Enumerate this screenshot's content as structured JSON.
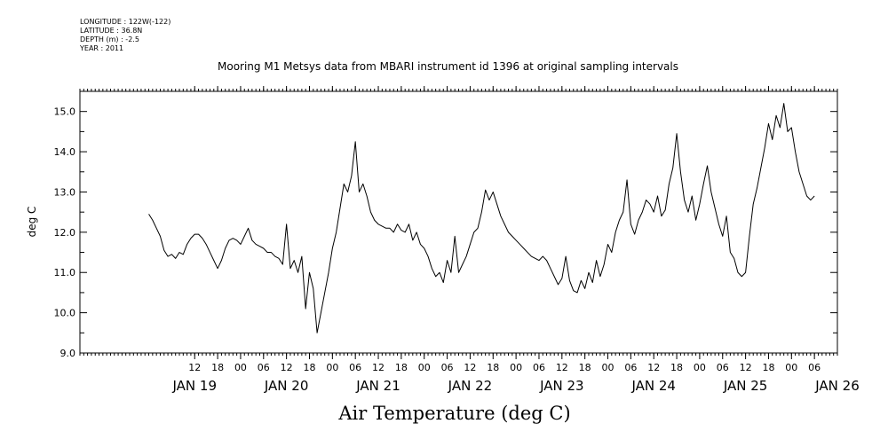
{
  "meta": {
    "longitude": "LONGITUDE : 122W(-122)",
    "latitude": "LATITUDE : 36.8N",
    "depth": "DEPTH (m) : -2.5",
    "year": "YEAR : 2011"
  },
  "chart_data": {
    "type": "line",
    "title": "Mooring M1 Metsys data from MBARI instrument id 1396 at original sampling intervals",
    "xlabel": "Air Temperature (deg C)",
    "ylabel": "deg C",
    "ylim": [
      9.0,
      15.5
    ],
    "y_ticks": [
      "9.0",
      "10.0",
      "11.0",
      "12.0",
      "13.0",
      "14.0",
      "15.0"
    ],
    "xlim": [
      "2011-01-18T06:00",
      "2011-01-26T12:00"
    ],
    "hour_ticks": [
      {
        "t": "2011-01-19T12:00",
        "label": "12"
      },
      {
        "t": "2011-01-19T18:00",
        "label": "18"
      },
      {
        "t": "2011-01-20T00:00",
        "label": "00"
      },
      {
        "t": "2011-01-20T06:00",
        "label": "06"
      },
      {
        "t": "2011-01-20T12:00",
        "label": "12"
      },
      {
        "t": "2011-01-20T18:00",
        "label": "18"
      },
      {
        "t": "2011-01-21T00:00",
        "label": "00"
      },
      {
        "t": "2011-01-21T06:00",
        "label": "06"
      },
      {
        "t": "2011-01-21T12:00",
        "label": "12"
      },
      {
        "t": "2011-01-21T18:00",
        "label": "18"
      },
      {
        "t": "2011-01-22T00:00",
        "label": "00"
      },
      {
        "t": "2011-01-22T06:00",
        "label": "06"
      },
      {
        "t": "2011-01-22T12:00",
        "label": "12"
      },
      {
        "t": "2011-01-22T18:00",
        "label": "18"
      },
      {
        "t": "2011-01-23T00:00",
        "label": "00"
      },
      {
        "t": "2011-01-23T06:00",
        "label": "06"
      },
      {
        "t": "2011-01-23T12:00",
        "label": "12"
      },
      {
        "t": "2011-01-23T18:00",
        "label": "18"
      },
      {
        "t": "2011-01-24T00:00",
        "label": "00"
      },
      {
        "t": "2011-01-24T06:00",
        "label": "06"
      },
      {
        "t": "2011-01-24T12:00",
        "label": "12"
      },
      {
        "t": "2011-01-24T18:00",
        "label": "18"
      },
      {
        "t": "2011-01-25T00:00",
        "label": "00"
      },
      {
        "t": "2011-01-25T06:00",
        "label": "06"
      },
      {
        "t": "2011-01-25T12:00",
        "label": "12"
      },
      {
        "t": "2011-01-25T18:00",
        "label": "18"
      },
      {
        "t": "2011-01-26T00:00",
        "label": "00"
      },
      {
        "t": "2011-01-26T06:00",
        "label": "06"
      }
    ],
    "day_labels": [
      {
        "t": "2011-01-19T12:00",
        "label": "JAN 19"
      },
      {
        "t": "2011-01-20T12:00",
        "label": "JAN 20"
      },
      {
        "t": "2011-01-21T12:00",
        "label": "JAN 21"
      },
      {
        "t": "2011-01-22T12:00",
        "label": "JAN 22"
      },
      {
        "t": "2011-01-23T12:00",
        "label": "JAN 23"
      },
      {
        "t": "2011-01-24T12:00",
        "label": "JAN 24"
      },
      {
        "t": "2011-01-25T12:00",
        "label": "JAN 25"
      },
      {
        "t": "2011-01-26T12:00",
        "label": "JAN 26"
      }
    ],
    "grid": false,
    "series": [
      {
        "color": "#000000",
        "points": [
          [
            "2011-01-19T00:00",
            12.45
          ],
          [
            "2011-01-19T01:00",
            12.3
          ],
          [
            "2011-01-19T02:00",
            12.1
          ],
          [
            "2011-01-19T03:00",
            11.9
          ],
          [
            "2011-01-19T04:00",
            11.55
          ],
          [
            "2011-01-19T05:00",
            11.4
          ],
          [
            "2011-01-19T06:00",
            11.45
          ],
          [
            "2011-01-19T07:00",
            11.35
          ],
          [
            "2011-01-19T08:00",
            11.5
          ],
          [
            "2011-01-19T09:00",
            11.45
          ],
          [
            "2011-01-19T10:00",
            11.7
          ],
          [
            "2011-01-19T11:00",
            11.85
          ],
          [
            "2011-01-19T12:00",
            11.95
          ],
          [
            "2011-01-19T13:00",
            11.95
          ],
          [
            "2011-01-19T14:00",
            11.85
          ],
          [
            "2011-01-19T15:00",
            11.7
          ],
          [
            "2011-01-19T16:00",
            11.5
          ],
          [
            "2011-01-19T17:00",
            11.3
          ],
          [
            "2011-01-19T18:00",
            11.1
          ],
          [
            "2011-01-19T19:00",
            11.3
          ],
          [
            "2011-01-19T20:00",
            11.6
          ],
          [
            "2011-01-19T21:00",
            11.8
          ],
          [
            "2011-01-19T22:00",
            11.85
          ],
          [
            "2011-01-19T23:00",
            11.8
          ],
          [
            "2011-01-20T00:00",
            11.7
          ],
          [
            "2011-01-20T01:00",
            11.9
          ],
          [
            "2011-01-20T02:00",
            12.1
          ],
          [
            "2011-01-20T03:00",
            11.8
          ],
          [
            "2011-01-20T04:00",
            11.7
          ],
          [
            "2011-01-20T05:00",
            11.65
          ],
          [
            "2011-01-20T06:00",
            11.6
          ],
          [
            "2011-01-20T07:00",
            11.5
          ],
          [
            "2011-01-20T08:00",
            11.5
          ],
          [
            "2011-01-20T09:00",
            11.4
          ],
          [
            "2011-01-20T10:00",
            11.35
          ],
          [
            "2011-01-20T11:00",
            11.2
          ],
          [
            "2011-01-20T12:00",
            12.2
          ],
          [
            "2011-01-20T13:00",
            11.1
          ],
          [
            "2011-01-20T14:00",
            11.3
          ],
          [
            "2011-01-20T15:00",
            11.0
          ],
          [
            "2011-01-20T16:00",
            11.4
          ],
          [
            "2011-01-20T17:00",
            10.1
          ],
          [
            "2011-01-20T18:00",
            11.0
          ],
          [
            "2011-01-20T19:00",
            10.6
          ],
          [
            "2011-01-20T20:00",
            9.5
          ],
          [
            "2011-01-20T21:00",
            10.0
          ],
          [
            "2011-01-20T22:00",
            10.5
          ],
          [
            "2011-01-20T23:00",
            11.0
          ],
          [
            "2011-01-21T00:00",
            11.6
          ],
          [
            "2011-01-21T01:00",
            12.0
          ],
          [
            "2011-01-21T02:00",
            12.6
          ],
          [
            "2011-01-21T03:00",
            13.2
          ],
          [
            "2011-01-21T04:00",
            13.0
          ],
          [
            "2011-01-21T05:00",
            13.4
          ],
          [
            "2011-01-21T06:00",
            14.25
          ],
          [
            "2011-01-21T07:00",
            13.0
          ],
          [
            "2011-01-21T08:00",
            13.2
          ],
          [
            "2011-01-21T09:00",
            12.9
          ],
          [
            "2011-01-21T10:00",
            12.5
          ],
          [
            "2011-01-21T11:00",
            12.3
          ],
          [
            "2011-01-21T12:00",
            12.2
          ],
          [
            "2011-01-21T13:00",
            12.15
          ],
          [
            "2011-01-21T14:00",
            12.1
          ],
          [
            "2011-01-21T15:00",
            12.1
          ],
          [
            "2011-01-21T16:00",
            12.0
          ],
          [
            "2011-01-21T17:00",
            12.2
          ],
          [
            "2011-01-21T18:00",
            12.05
          ],
          [
            "2011-01-21T19:00",
            12.0
          ],
          [
            "2011-01-21T20:00",
            12.2
          ],
          [
            "2011-01-21T21:00",
            11.8
          ],
          [
            "2011-01-21T22:00",
            12.0
          ],
          [
            "2011-01-21T23:00",
            11.7
          ],
          [
            "2011-01-22T00:00",
            11.6
          ],
          [
            "2011-01-22T01:00",
            11.4
          ],
          [
            "2011-01-22T02:00",
            11.1
          ],
          [
            "2011-01-22T03:00",
            10.9
          ],
          [
            "2011-01-22T04:00",
            11.0
          ],
          [
            "2011-01-22T05:00",
            10.75
          ],
          [
            "2011-01-22T06:00",
            11.3
          ],
          [
            "2011-01-22T07:00",
            11.0
          ],
          [
            "2011-01-22T08:00",
            11.9
          ],
          [
            "2011-01-22T09:00",
            11.0
          ],
          [
            "2011-01-22T10:00",
            11.2
          ],
          [
            "2011-01-22T11:00",
            11.4
          ],
          [
            "2011-01-22T12:00",
            11.7
          ],
          [
            "2011-01-22T13:00",
            12.0
          ],
          [
            "2011-01-22T14:00",
            12.1
          ],
          [
            "2011-01-22T15:00",
            12.5
          ],
          [
            "2011-01-22T16:00",
            13.05
          ],
          [
            "2011-01-22T17:00",
            12.8
          ],
          [
            "2011-01-22T18:00",
            13.0
          ],
          [
            "2011-01-22T19:00",
            12.7
          ],
          [
            "2011-01-22T20:00",
            12.4
          ],
          [
            "2011-01-22T21:00",
            12.2
          ],
          [
            "2011-01-22T22:00",
            12.0
          ],
          [
            "2011-01-22T23:00",
            11.9
          ],
          [
            "2011-01-23T00:00",
            11.8
          ],
          [
            "2011-01-23T01:00",
            11.7
          ],
          [
            "2011-01-23T02:00",
            11.6
          ],
          [
            "2011-01-23T03:00",
            11.5
          ],
          [
            "2011-01-23T04:00",
            11.4
          ],
          [
            "2011-01-23T05:00",
            11.35
          ],
          [
            "2011-01-23T06:00",
            11.3
          ],
          [
            "2011-01-23T07:00",
            11.4
          ],
          [
            "2011-01-23T08:00",
            11.3
          ],
          [
            "2011-01-23T09:00",
            11.1
          ],
          [
            "2011-01-23T10:00",
            10.9
          ],
          [
            "2011-01-23T11:00",
            10.7
          ],
          [
            "2011-01-23T12:00",
            10.85
          ],
          [
            "2011-01-23T13:00",
            11.4
          ],
          [
            "2011-01-23T14:00",
            10.8
          ],
          [
            "2011-01-23T15:00",
            10.55
          ],
          [
            "2011-01-23T16:00",
            10.5
          ],
          [
            "2011-01-23T17:00",
            10.8
          ],
          [
            "2011-01-23T18:00",
            10.6
          ],
          [
            "2011-01-23T19:00",
            11.0
          ],
          [
            "2011-01-23T20:00",
            10.75
          ],
          [
            "2011-01-23T21:00",
            11.3
          ],
          [
            "2011-01-23T22:00",
            10.9
          ],
          [
            "2011-01-23T23:00",
            11.2
          ],
          [
            "2011-01-24T00:00",
            11.7
          ],
          [
            "2011-01-24T01:00",
            11.5
          ],
          [
            "2011-01-24T02:00",
            12.0
          ],
          [
            "2011-01-24T03:00",
            12.3
          ],
          [
            "2011-01-24T04:00",
            12.5
          ],
          [
            "2011-01-24T05:00",
            13.3
          ],
          [
            "2011-01-24T06:00",
            12.2
          ],
          [
            "2011-01-24T07:00",
            11.95
          ],
          [
            "2011-01-24T08:00",
            12.3
          ],
          [
            "2011-01-24T09:00",
            12.5
          ],
          [
            "2011-01-24T10:00",
            12.8
          ],
          [
            "2011-01-24T11:00",
            12.7
          ],
          [
            "2011-01-24T12:00",
            12.5
          ],
          [
            "2011-01-24T13:00",
            12.9
          ],
          [
            "2011-01-24T14:00",
            12.4
          ],
          [
            "2011-01-24T15:00",
            12.55
          ],
          [
            "2011-01-24T16:00",
            13.2
          ],
          [
            "2011-01-24T17:00",
            13.6
          ],
          [
            "2011-01-24T18:00",
            14.45
          ],
          [
            "2011-01-24T19:00",
            13.5
          ],
          [
            "2011-01-24T20:00",
            12.8
          ],
          [
            "2011-01-24T21:00",
            12.5
          ],
          [
            "2011-01-24T22:00",
            12.9
          ],
          [
            "2011-01-24T23:00",
            12.3
          ],
          [
            "2011-01-25T00:00",
            12.7
          ],
          [
            "2011-01-25T01:00",
            13.2
          ],
          [
            "2011-01-25T02:00",
            13.65
          ],
          [
            "2011-01-25T03:00",
            13.0
          ],
          [
            "2011-01-25T04:00",
            12.6
          ],
          [
            "2011-01-25T05:00",
            12.2
          ],
          [
            "2011-01-25T06:00",
            11.9
          ],
          [
            "2011-01-25T07:00",
            12.4
          ],
          [
            "2011-01-25T08:00",
            11.5
          ],
          [
            "2011-01-25T09:00",
            11.35
          ],
          [
            "2011-01-25T10:00",
            11.0
          ],
          [
            "2011-01-25T11:00",
            10.9
          ],
          [
            "2011-01-25T12:00",
            11.0
          ],
          [
            "2011-01-25T13:00",
            11.9
          ],
          [
            "2011-01-25T14:00",
            12.7
          ],
          [
            "2011-01-25T15:00",
            13.1
          ],
          [
            "2011-01-25T16:00",
            13.6
          ],
          [
            "2011-01-25T17:00",
            14.1
          ],
          [
            "2011-01-25T18:00",
            14.7
          ],
          [
            "2011-01-25T19:00",
            14.3
          ],
          [
            "2011-01-25T20:00",
            14.9
          ],
          [
            "2011-01-25T21:00",
            14.6
          ],
          [
            "2011-01-25T22:00",
            15.2
          ],
          [
            "2011-01-25T23:00",
            14.5
          ],
          [
            "2011-01-26T00:00",
            14.6
          ],
          [
            "2011-01-26T01:00",
            14.0
          ],
          [
            "2011-01-26T02:00",
            13.5
          ],
          [
            "2011-01-26T03:00",
            13.2
          ],
          [
            "2011-01-26T04:00",
            12.9
          ],
          [
            "2011-01-26T05:00",
            12.8
          ],
          [
            "2011-01-26T06:00",
            12.9
          ]
        ]
      }
    ]
  }
}
